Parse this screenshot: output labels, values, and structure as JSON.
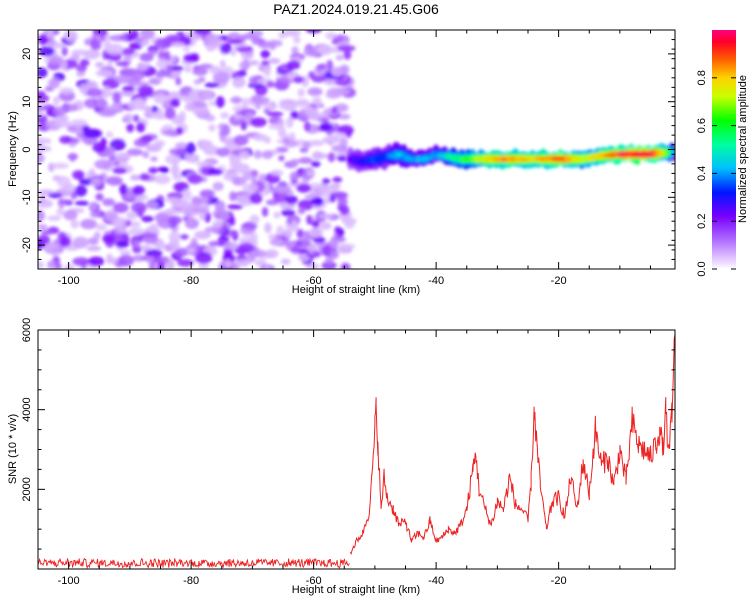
{
  "title": "PAZ1.2024.019.21.45.G06",
  "chart_data": [
    {
      "type": "heatmap",
      "xlabel": "Height of straight line (km)",
      "ylabel": "Frequency (Hz)",
      "xlim": [
        -105,
        -1
      ],
      "ylim": [
        -25,
        25
      ],
      "xticks": [
        -100,
        -80,
        -60,
        -40,
        -20
      ],
      "yticks": [
        -20,
        -10,
        0,
        10,
        20
      ],
      "colorbar": {
        "label": "Normalized spectral amplitude",
        "range": [
          0,
          1
        ],
        "ticks": [
          0.0,
          0.2,
          0.4,
          0.6,
          0.8
        ],
        "colormap": "gist_rainbow_r"
      },
      "noise_region": {
        "x": [
          -105,
          -54
        ],
        "y": [
          -25,
          25
        ],
        "amplitude_range": [
          0.05,
          0.25
        ]
      },
      "signal_ridge": {
        "x": [
          -54,
          -52,
          -50,
          -48,
          -46,
          -44,
          -42,
          -40,
          -38,
          -36,
          -34,
          -32,
          -30,
          -28,
          -26,
          -24,
          -22,
          -20,
          -18,
          -16,
          -14,
          -12,
          -10,
          -8,
          -6,
          -4,
          -2,
          -1
        ],
        "frequency": [
          -2,
          -2.5,
          -2,
          -1.5,
          -1,
          -2,
          -2,
          -1,
          -1.5,
          -2,
          -2,
          -2,
          -2,
          -2,
          -2,
          -2,
          -2,
          -2,
          -2,
          -2,
          -1.5,
          -1.2,
          -1,
          -1,
          -1,
          -0.8,
          -0.6,
          -0.5
        ],
        "amplitude": [
          0.25,
          0.3,
          0.35,
          0.35,
          0.45,
          0.4,
          0.45,
          0.4,
          0.55,
          0.6,
          0.7,
          0.8,
          0.85,
          0.9,
          0.85,
          0.8,
          0.85,
          0.9,
          0.85,
          0.75,
          0.8,
          0.85,
          0.95,
          1.0,
          1.0,
          0.95,
          0.7,
          0.4
        ]
      }
    },
    {
      "type": "line",
      "xlabel": "Height of straight line (km)",
      "ylabel": "SNR (10 * v/v)",
      "xlim": [
        -105,
        -1
      ],
      "ylim": [
        0,
        6000
      ],
      "xticks": [
        -100,
        -80,
        -60,
        -40,
        -20
      ],
      "yticks": [
        2000,
        4000,
        6000
      ],
      "series": [
        {
          "color": "#ee2222",
          "x": [
            -105,
            -100,
            -95,
            -90,
            -85,
            -80,
            -75,
            -70,
            -65,
            -60,
            -56,
            -54,
            -53,
            -52,
            -51,
            -50.5,
            -50,
            -49.8,
            -49.5,
            -49,
            -48.5,
            -48,
            -47,
            -46,
            -45,
            -44,
            -43,
            -42,
            -41,
            -40,
            -39,
            -38,
            -37,
            -36,
            -35,
            -34,
            -33.5,
            -33,
            -32,
            -31,
            -30,
            -29,
            -28,
            -27,
            -26,
            -25,
            -24.5,
            -24,
            -23.5,
            -23,
            -22,
            -21,
            -20,
            -19,
            -18,
            -17,
            -16,
            -15,
            -14,
            -13,
            -12,
            -11,
            -10,
            -9,
            -8,
            -7,
            -6,
            -5,
            -4,
            -3.5,
            -3,
            -2.5,
            -2,
            -1.5,
            -1
          ],
          "values": [
            150,
            130,
            160,
            140,
            150,
            130,
            160,
            140,
            150,
            140,
            200,
            400,
            700,
            900,
            1400,
            2200,
            3500,
            4000,
            3200,
            1500,
            2300,
            1800,
            1500,
            1100,
            1200,
            700,
            900,
            800,
            1200,
            700,
            800,
            1000,
            900,
            1100,
            1500,
            2500,
            2900,
            2000,
            1500,
            1100,
            1700,
            1500,
            2300,
            1600,
            1500,
            1200,
            2200,
            4000,
            3000,
            2100,
            1000,
            1700,
            1800,
            1300,
            2300,
            1500,
            2700,
            1900,
            3500,
            2600,
            2800,
            2100,
            3000,
            2200,
            3700,
            3100,
            3000,
            2800,
            3200,
            3500,
            3000,
            3900,
            2900,
            3800,
            5900
          ]
        }
      ]
    }
  ]
}
